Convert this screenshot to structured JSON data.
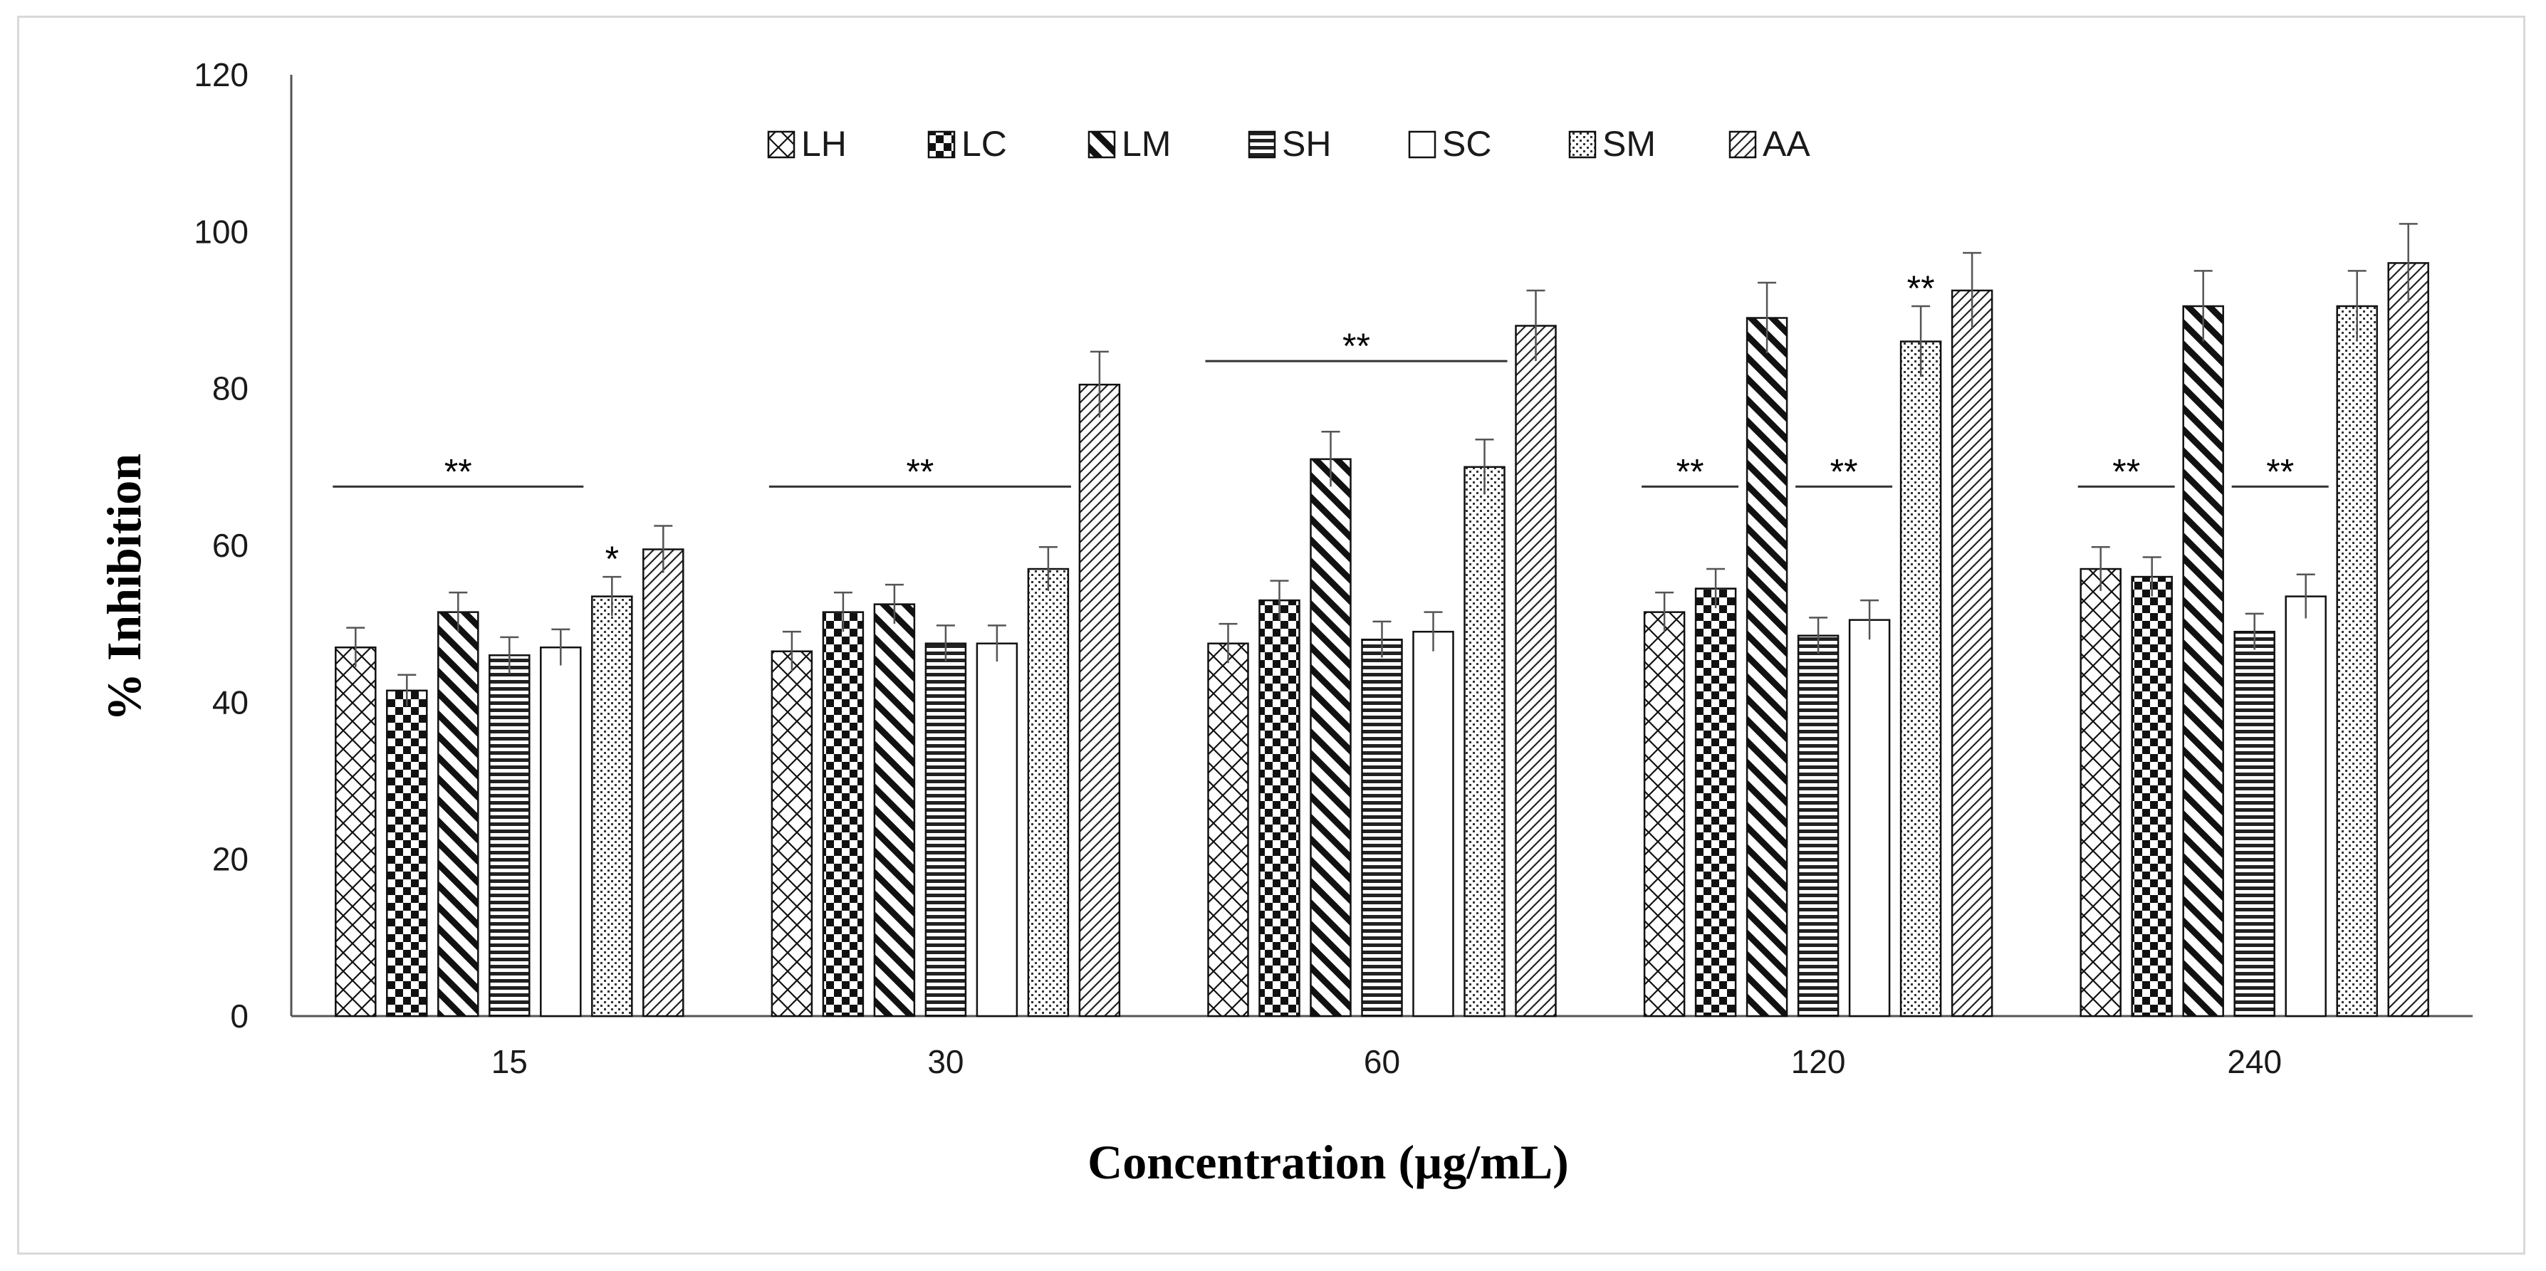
{
  "chart_data": {
    "type": "bar",
    "title": "",
    "xlabel": "Concentration (µg/mL)",
    "ylabel": "% Inhibition",
    "ylim": [
      0,
      120
    ],
    "yticks": [
      "0",
      "20",
      "40",
      "60",
      "80",
      "100",
      "120"
    ],
    "categories": [
      "15",
      "30",
      "60",
      "120",
      "240"
    ],
    "legend_position": "top-center",
    "series": [
      {
        "name": "LH",
        "pattern": "crosshatch",
        "values": [
          47,
          46.5,
          47.5,
          51.5,
          57
        ],
        "errors": [
          2.5,
          2.5,
          2.5,
          2.5,
          2.8
        ]
      },
      {
        "name": "LC",
        "pattern": "checker",
        "values": [
          41.5,
          51.5,
          53,
          54.5,
          56
        ],
        "errors": [
          2,
          2.5,
          2.5,
          2.5,
          2.5
        ]
      },
      {
        "name": "LM",
        "pattern": "wide-downward-diagonal",
        "values": [
          51.5,
          52.5,
          71,
          89,
          90.5
        ],
        "errors": [
          2.5,
          2.5,
          3.5,
          4.5,
          4.5
        ]
      },
      {
        "name": "SH",
        "pattern": "horizontal",
        "values": [
          46,
          47.5,
          48,
          48.5,
          49
        ],
        "errors": [
          2.3,
          2.3,
          2.3,
          2.3,
          2.3
        ]
      },
      {
        "name": "SC",
        "pattern": "solid-white",
        "values": [
          47,
          47.5,
          49,
          50.5,
          53.5
        ],
        "errors": [
          2.3,
          2.3,
          2.5,
          2.5,
          2.8
        ]
      },
      {
        "name": "SM",
        "pattern": "dotted",
        "values": [
          53.5,
          57,
          70,
          86,
          90.5
        ],
        "errors": [
          2.5,
          2.8,
          3.5,
          4.5,
          4.5
        ]
      },
      {
        "name": "AA",
        "pattern": "light-upward-diagonal",
        "values": [
          59.5,
          80.5,
          88,
          92.5,
          96
        ],
        "errors": [
          3,
          4.2,
          4.5,
          4.8,
          5
        ]
      }
    ],
    "annotations": [
      {
        "text": "**",
        "category": 0,
        "type": "bracket",
        "from_series": 0,
        "to_series": 4,
        "y": 67.5
      },
      {
        "text": "*",
        "category": 0,
        "type": "star",
        "series": 5
      },
      {
        "text": "**",
        "category": 1,
        "type": "bracket",
        "from_series": 0,
        "to_series": 5,
        "y": 67.5
      },
      {
        "text": "**",
        "category": 2,
        "type": "bracket",
        "from_series": 0,
        "to_series": 5,
        "y": 83.5
      },
      {
        "text": "**",
        "category": 3,
        "type": "bracket",
        "from_series": 0,
        "to_series": 1,
        "y": 67.5
      },
      {
        "text": "**",
        "category": 3,
        "type": "bracket",
        "from_series": 3,
        "to_series": 4,
        "y": 67.5
      },
      {
        "text": "**",
        "category": 3,
        "type": "star",
        "series": 5
      },
      {
        "text": "**",
        "category": 4,
        "type": "bracket",
        "from_series": 0,
        "to_series": 1,
        "y": 67.5
      },
      {
        "text": "**",
        "category": 4,
        "type": "bracket",
        "from_series": 3,
        "to_series": 4,
        "y": 67.5
      }
    ]
  }
}
